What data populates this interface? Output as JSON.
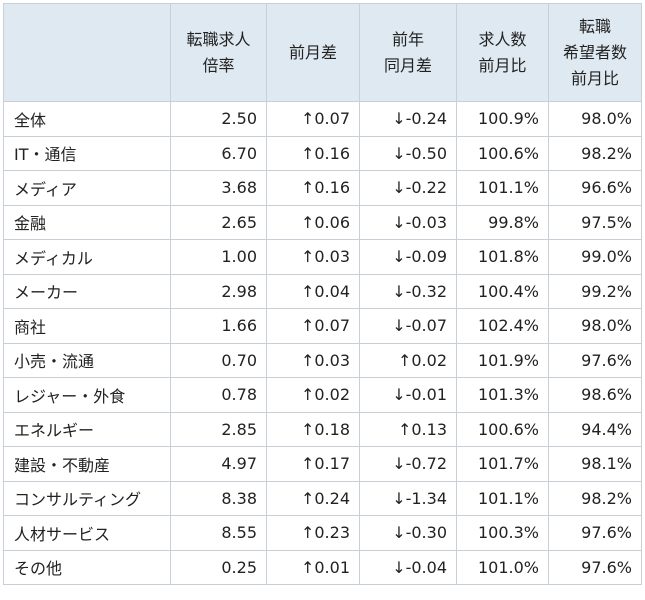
{
  "table": {
    "headers": [
      {
        "lines": [
          "",
          "",
          ""
        ]
      },
      {
        "lines": [
          "転職求人",
          "倍率",
          ""
        ]
      },
      {
        "lines": [
          "前月差",
          "",
          ""
        ]
      },
      {
        "lines": [
          "前年",
          "同月差",
          ""
        ]
      },
      {
        "lines": [
          "求人数",
          "前月比",
          ""
        ]
      },
      {
        "lines": [
          "転職",
          "希望者数",
          "前月比"
        ]
      }
    ],
    "rows": [
      {
        "cells": [
          "全体",
          "2.50",
          "↑0.07",
          "↓-0.24",
          "100.9%",
          "98.0%"
        ]
      },
      {
        "cells": [
          "IT・通信",
          "6.70",
          "↑0.16",
          "↓-0.50",
          "100.6%",
          "98.2%"
        ]
      },
      {
        "cells": [
          "メディア",
          "3.68",
          "↑0.16",
          "↓-0.22",
          "101.1%",
          "96.6%"
        ]
      },
      {
        "cells": [
          "金融",
          "2.65",
          "↑0.06",
          "↓-0.03",
          "99.8%",
          "97.5%"
        ]
      },
      {
        "cells": [
          "メディカル",
          "1.00",
          "↑0.03",
          "↓-0.09",
          "101.8%",
          "99.0%"
        ]
      },
      {
        "cells": [
          "メーカー",
          "2.98",
          "↑0.04",
          "↓-0.32",
          "100.4%",
          "99.2%"
        ]
      },
      {
        "cells": [
          "商社",
          "1.66",
          "↑0.07",
          "↓-0.07",
          "102.4%",
          "98.0%"
        ]
      },
      {
        "cells": [
          "小売・流通",
          "0.70",
          "↑0.03",
          "↑0.02",
          "101.9%",
          "97.6%"
        ]
      },
      {
        "cells": [
          "レジャー・外食",
          "0.78",
          "↑0.02",
          "↓-0.01",
          "101.3%",
          "98.6%"
        ]
      },
      {
        "cells": [
          "エネルギー",
          "2.85",
          "↑0.18",
          "↑0.13",
          "100.6%",
          "94.4%"
        ]
      },
      {
        "cells": [
          "建設・不動産",
          "4.97",
          "↑0.17",
          "↓-0.72",
          "101.7%",
          "98.1%"
        ]
      },
      {
        "cells": [
          "コンサルティング",
          "8.38",
          "↑0.24",
          "↓-1.34",
          "101.1%",
          "98.2%"
        ]
      },
      {
        "cells": [
          "人材サービス",
          "8.55",
          "↑0.23",
          "↓-0.30",
          "100.3%",
          "97.6%"
        ]
      },
      {
        "cells": [
          "その他",
          "0.25",
          "↑0.01",
          "↓-0.04",
          "101.0%",
          "97.6%"
        ]
      }
    ]
  },
  "colors": {
    "header_bg": "#dfe9f1",
    "border": "#c9cfd6",
    "text": "#222222"
  }
}
